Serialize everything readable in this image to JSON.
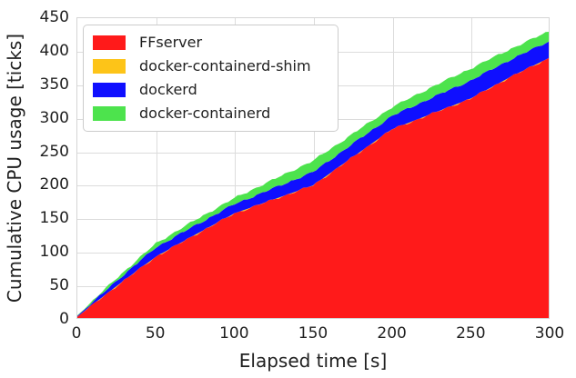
{
  "chart_data": {
    "type": "area",
    "stacked": true,
    "title": "",
    "xlabel": "Elapsed time [s]",
    "ylabel": "Cumulative CPU usage [ticks]",
    "xlim": [
      0,
      300
    ],
    "ylim": [
      0,
      450
    ],
    "xticks": [
      0,
      50,
      100,
      150,
      200,
      250,
      300
    ],
    "yticks": [
      0,
      50,
      100,
      150,
      200,
      250,
      300,
      350,
      400,
      450
    ],
    "grid": true,
    "legend_position": "upper left",
    "x": [
      0,
      25,
      50,
      75,
      100,
      125,
      150,
      175,
      200,
      225,
      250,
      275,
      300
    ],
    "series": [
      {
        "name": "FFserver",
        "color": "#ff1a1a",
        "values": [
          2,
          48,
          92,
          125,
          157,
          178,
          199,
          241,
          283,
          306,
          329,
          361,
          390
        ]
      },
      {
        "name": "docker-containerd-shim",
        "color": "#fdc418",
        "values": [
          0,
          0,
          0,
          0,
          0,
          0,
          0,
          0,
          0,
          0,
          0,
          0,
          0
        ]
      },
      {
        "name": "dockerd",
        "color": "#0f0fff",
        "values": [
          1,
          8,
          14,
          14,
          14,
          17,
          20,
          20,
          20,
          24,
          27,
          26,
          25
        ]
      },
      {
        "name": "docker-containerd",
        "color": "#4de34d",
        "values": [
          1,
          4,
          6,
          8,
          9,
          13,
          17,
          15,
          13,
          16,
          18,
          16,
          15
        ]
      }
    ]
  },
  "style": {
    "grid_color": "#dcdcdc",
    "spine_color": "#d5d5d5",
    "text_color": "#1f1f1f",
    "plot_background": "#ffffff",
    "legend_border": "#cccccc"
  }
}
